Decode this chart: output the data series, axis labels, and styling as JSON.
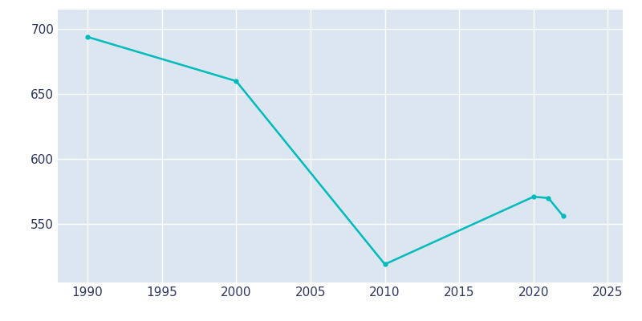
{
  "years": [
    1990,
    2000,
    2010,
    2020,
    2021,
    2022
  ],
  "population": [
    694,
    660,
    519,
    571,
    570,
    556
  ],
  "line_color": "#00BBBB",
  "marker": "o",
  "marker_size": 3.5,
  "bg_color": "#dce6f0",
  "fig_bg_color": "#ffffff",
  "grid_color": "#ffffff",
  "tick_color": "#2d3561",
  "xlim": [
    1988,
    2026
  ],
  "ylim": [
    505,
    715
  ],
  "xticks": [
    1990,
    1995,
    2000,
    2005,
    2010,
    2015,
    2020,
    2025
  ],
  "yticks": [
    550,
    600,
    650,
    700
  ],
  "line_width": 1.8,
  "tick_labelsize": 11
}
